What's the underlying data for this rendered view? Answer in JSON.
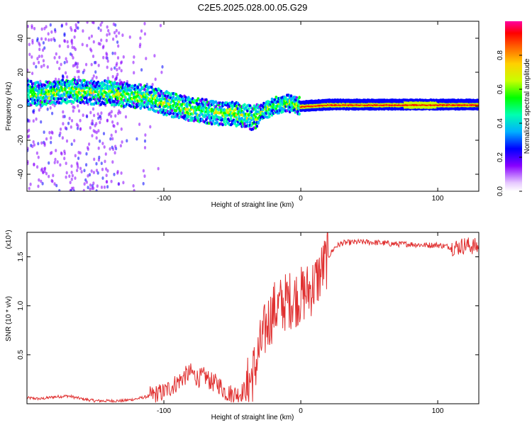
{
  "figure": {
    "title": "C2E5.2025.028.00.05.G29"
  },
  "chart_data": [
    {
      "type": "heatmap",
      "xlabel": "Height of straight line (km)",
      "ylabel": "Frequency (Hz)",
      "xlim": [
        -200,
        130
      ],
      "ylim": [
        -50,
        50
      ],
      "xticks": [
        "-100",
        "0",
        "100"
      ],
      "yticks": [
        "-40",
        "-20",
        "0",
        "20",
        "40"
      ],
      "colorbar": {
        "label": "Normalized spectral amplitude",
        "range": [
          0,
          1
        ],
        "ticks": [
          "0.0",
          "0.2",
          "0.4",
          "0.6",
          "0.8"
        ],
        "colors": [
          "#e6c8ff",
          "#8800ff",
          "#0000ff",
          "#00b0ff",
          "#00ffb0",
          "#00ff00",
          "#c8ff00",
          "#ffd000",
          "#ff6000",
          "#ff0000",
          "#ff00a0"
        ]
      },
      "ridge": [
        {
          "x": -200,
          "f": 8
        },
        {
          "x": -190,
          "f": 7
        },
        {
          "x": -180,
          "f": 8
        },
        {
          "x": -170,
          "f": 9
        },
        {
          "x": -160,
          "f": 9
        },
        {
          "x": -150,
          "f": 8
        },
        {
          "x": -140,
          "f": 8
        },
        {
          "x": -130,
          "f": 7
        },
        {
          "x": -120,
          "f": 6
        },
        {
          "x": -110,
          "f": 5
        },
        {
          "x": -100,
          "f": 2
        },
        {
          "x": -90,
          "f": 0
        },
        {
          "x": -80,
          "f": -2
        },
        {
          "x": -70,
          "f": -3
        },
        {
          "x": -60,
          "f": -4
        },
        {
          "x": -50,
          "f": -4
        },
        {
          "x": -40,
          "f": -6
        },
        {
          "x": -35,
          "f": -7
        },
        {
          "x": -30,
          "f": -4
        },
        {
          "x": -25,
          "f": -2
        },
        {
          "x": -20,
          "f": 0
        },
        {
          "x": -15,
          "f": 1
        },
        {
          "x": -10,
          "f": 2
        },
        {
          "x": -5,
          "f": 1
        },
        {
          "x": 0,
          "f": 0
        },
        {
          "x": 20,
          "f": 1
        },
        {
          "x": 50,
          "f": 1
        },
        {
          "x": 80,
          "f": 1
        },
        {
          "x": 100,
          "f": 1
        },
        {
          "x": 130,
          "f": 1
        }
      ]
    },
    {
      "type": "line",
      "xlabel": "Height of straight line (km)",
      "ylabel": "SNR (10 * v/v)",
      "multiplier": "(x10⁴)",
      "xlim": [
        -200,
        130
      ],
      "ylim": [
        0,
        1.75
      ],
      "xticks": [
        "-100",
        "0",
        "100"
      ],
      "yticks": [
        "0.5",
        "1.0",
        "1.5"
      ],
      "color": "#e03030",
      "series": [
        {
          "x": [
            -200,
            -190,
            -180,
            -170,
            -160,
            -150,
            -140,
            -130,
            -120,
            -110,
            -100,
            -95,
            -90,
            -85,
            -80,
            -75,
            -70,
            -65,
            -60,
            -55,
            -50,
            -45,
            -40,
            -35,
            -30,
            -25,
            -20,
            -15,
            -10,
            -5,
            0,
            5,
            10,
            15,
            20,
            25,
            30,
            40,
            50,
            60,
            70,
            80,
            90,
            100,
            110,
            115,
            120,
            130
          ],
          "y": [
            0.06,
            0.05,
            0.07,
            0.08,
            0.05,
            0.03,
            0.03,
            0.03,
            0.05,
            0.08,
            0.12,
            0.17,
            0.22,
            0.28,
            0.32,
            0.26,
            0.28,
            0.22,
            0.2,
            0.12,
            0.1,
            0.1,
            0.15,
            0.3,
            0.55,
            0.8,
            0.95,
            1.0,
            1.05,
            1.08,
            1.1,
            1.15,
            1.22,
            1.35,
            1.5,
            1.6,
            1.64,
            1.65,
            1.65,
            1.64,
            1.63,
            1.63,
            1.62,
            1.62,
            1.6,
            1.6,
            1.62,
            1.6
          ]
        }
      ]
    }
  ]
}
